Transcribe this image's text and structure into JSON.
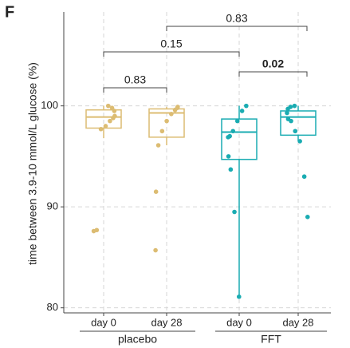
{
  "chart_data": {
    "type": "box",
    "panel_label": "F",
    "y_label": "time between 3.9-10 mmol/L glucose (%)",
    "categories": [
      "day 0",
      "day 28",
      "day 0",
      "day 28"
    ],
    "groups": [
      {
        "name": "placebo",
        "color": "#dcbc72",
        "boxes": [
          {
            "whisker_low": 96.8,
            "q1": 97.8,
            "median": 98.9,
            "q3": 99.6,
            "whisker_high": 100,
            "points": [
              100,
              99.8,
              99.5,
              99.0,
              98.8,
              98.5,
              98.0,
              97.7,
              87.7,
              87.6
            ]
          },
          {
            "whisker_low": 96.1,
            "q1": 96.9,
            "median": 99.3,
            "q3": 99.7,
            "whisker_high": 99.9,
            "points": [
              99.9,
              99.8,
              99.6,
              99.2,
              98.5,
              97.5,
              96.1,
              91.5,
              85.7
            ]
          }
        ]
      },
      {
        "name": "FFT",
        "color": "#1aacb2",
        "boxes": [
          {
            "whisker_low": 81.1,
            "q1": 94.7,
            "median": 97.4,
            "q3": 98.7,
            "whisker_high": 100,
            "points": [
              100,
              99.5,
              98.5,
              97.5,
              97.0,
              96.9,
              95.0,
              93.7,
              89.5,
              81.1
            ]
          },
          {
            "whisker_low": 96.5,
            "q1": 97.1,
            "median": 98.9,
            "q3": 99.5,
            "whisker_high": 100,
            "points": [
              100,
              99.9,
              99.7,
              99.3,
              98.7,
              98.5,
              97.5,
              96.5,
              93.0,
              89.0
            ]
          }
        ]
      }
    ],
    "comparisons": [
      {
        "pair": [
          0,
          1
        ],
        "p": 0.83,
        "bold": false
      },
      {
        "pair": [
          0,
          2
        ],
        "p": 0.15,
        "bold": false
      },
      {
        "pair": [
          2,
          3
        ],
        "p": 0.02,
        "bold": true
      },
      {
        "pair": [
          1,
          3
        ],
        "p": 0.83,
        "bold": false
      }
    ],
    "ylim": [
      79.5,
      109.3
    ],
    "yticks": [
      80,
      90,
      100
    ],
    "grid": true
  }
}
